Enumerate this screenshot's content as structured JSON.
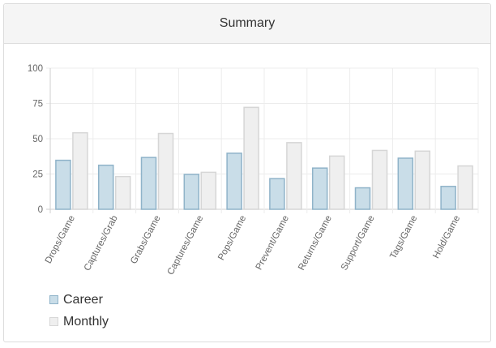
{
  "panel": {
    "title": "Summary"
  },
  "colors": {
    "career_fill": "#c9dde8",
    "career_stroke": "#8fb3c9",
    "monthly_fill": "#efefef",
    "monthly_stroke": "#d6d6d6",
    "grid": "#ececec",
    "axis": "#cfcfcf"
  },
  "chart_data": {
    "type": "bar",
    "categories": [
      "Drops/Game",
      "Captures/Grab",
      "Grabs/Game",
      "Captures/Game",
      "Pops/Game",
      "Prevent/Game",
      "Returns/Game",
      "Support/Game",
      "Tags/Game",
      "Hold/Game"
    ],
    "series": [
      {
        "name": "Career",
        "values": [
          35,
          31.5,
          37,
          25,
          40,
          22,
          29.5,
          15.5,
          36.5,
          16.5
        ]
      },
      {
        "name": "Monthly",
        "values": [
          54.5,
          23.5,
          54,
          26.5,
          72.5,
          47.5,
          38,
          42,
          41.5,
          31
        ]
      }
    ],
    "yticks": [
      0,
      25,
      50,
      75,
      100
    ],
    "ylim": [
      0,
      100
    ],
    "grid": true,
    "legend_position": "bottom-left"
  }
}
